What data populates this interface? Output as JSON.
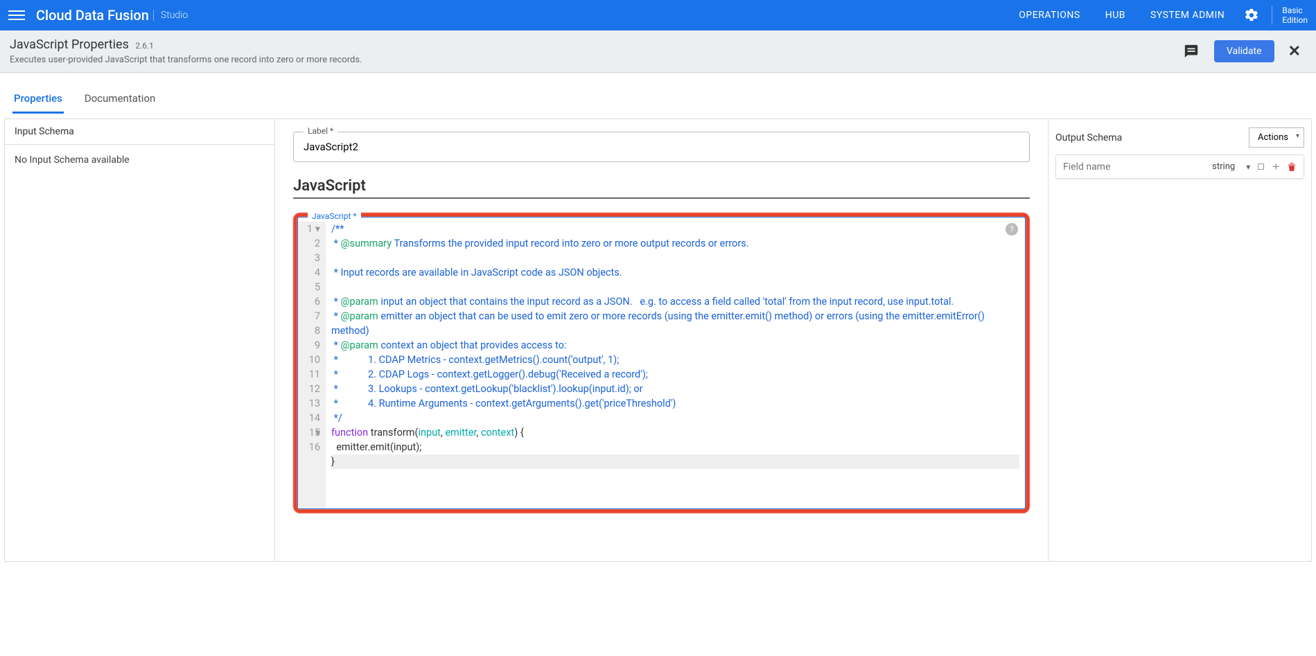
{
  "topbar": {
    "brand": "Cloud Data Fusion",
    "brand_sub": "Studio",
    "nav": {
      "operations": "OPERATIONS",
      "hub": "HUB",
      "sysadmin": "SYSTEM ADMIN"
    },
    "edition_l1": "Basic",
    "edition_l2": "Edition"
  },
  "subheader": {
    "title": "JavaScript Properties",
    "version": "2.6.1",
    "desc": "Executes user-provided JavaScript that transforms one record into zero or more records.",
    "validate": "Validate"
  },
  "tabs": {
    "properties": "Properties",
    "documentation": "Documentation",
    "active": "properties"
  },
  "input_schema": {
    "header": "Input Schema",
    "empty": "No Input Schema available"
  },
  "label_field": {
    "label": "Label  *",
    "value": "JavaScript2"
  },
  "section_title": "JavaScript",
  "code_field_label": "JavaScript  *",
  "code": {
    "line_numbers": [
      "1",
      "2",
      "3",
      "4",
      "5",
      "6",
      "7",
      "8",
      "9",
      "10",
      "11",
      "12",
      "13",
      "14",
      "15",
      "16"
    ],
    "fold_markers": {
      "1": "▾",
      "14": "▾"
    },
    "lines_html": [
      "<span class='c'>/**</span>",
      "<span class='c'> * </span><span class='t'>@summary</span><span class='c'> Transforms the provided input record into zero or more output records or errors.</span>",
      "<span class='c'> </span>",
      "<span class='c'> * Input records are available in JavaScript code as JSON objects.</span>",
      "<span class='c'> </span>",
      "<span class='c'> * </span><span class='t'>@param</span><span class='c'> input an object that contains the input record as a JSON.   e.g. to access a field called 'total' from the input record, use input.total.</span>",
      "<span class='c'> * </span><span class='t'>@param</span><span class='c'> emitter an object that can be used to emit zero or more records (using the emitter.emit() method) or errors (using the emitter.emitError() method)</span>",
      "<span class='c'> * </span><span class='t'>@param</span><span class='c'> context an object that provides access to:</span>",
      "<span class='c'> *            1. CDAP Metrics - context.getMetrics().count('output', 1);</span>",
      "<span class='c'> *            2. CDAP Logs - context.getLogger().debug('Received a record');</span>",
      "<span class='c'> *            3. Lookups - context.getLookup('blacklist').lookup(input.id); or</span>",
      "<span class='c'> *            4. Runtime Arguments - context.getArguments().get('priceThreshold')</span>",
      "<span class='c'> */</span>",
      "<span class='k'>function</span><span class='d'> transform(</span><span class='p'>input</span><span class='d'>, </span><span class='p'>emitter</span><span class='d'>, </span><span class='p'>context</span><span class='d'>) {</span>",
      "<span class='d'>  emitter.emit(input);</span>",
      "<span class='d'>}</span>"
    ],
    "highlight_rows": [
      16
    ]
  },
  "output_schema": {
    "header": "Output Schema",
    "actions": "Actions",
    "row": {
      "placeholder": "Field name",
      "type": "string"
    }
  },
  "colors": {
    "primary": "#1a73e8",
    "highlight_border": "#e7432a",
    "comment": "#1a62d6",
    "tag": "#1aa36b",
    "keyword": "#8a2be2",
    "param": "#0aa"
  }
}
